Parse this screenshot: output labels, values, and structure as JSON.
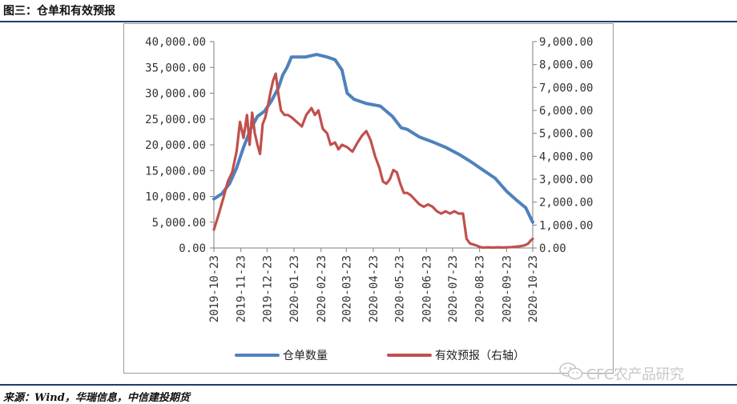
{
  "header": {
    "title": "图三：仓单和有效预报"
  },
  "footer": {
    "source": "来源：Wind，华瑞信息，中信建投期货",
    "watermark": "CFC农产品研究"
  },
  "colors": {
    "series1": "#4f81bd",
    "series2": "#c0504d",
    "rule": "#1f3b73"
  },
  "chart_data": {
    "type": "line",
    "title": "",
    "left_axis": {
      "ylim": [
        0,
        40000
      ],
      "ticks": [
        "0.00",
        "5,000.00",
        "10,000.00",
        "15,000.00",
        "20,000.00",
        "25,000.00",
        "30,000.00",
        "35,000.00",
        "40,000.00"
      ]
    },
    "right_axis": {
      "ylim": [
        0,
        9000
      ],
      "ticks": [
        "0.00",
        "1,000.00",
        "2,000.00",
        "3,000.00",
        "4,000.00",
        "5,000.00",
        "6,000.00",
        "7,000.00",
        "8,000.00",
        "9,000.00"
      ]
    },
    "x_ticks": [
      "2019-10-23",
      "2019-11-23",
      "2019-12-23",
      "2020-01-23",
      "2020-02-23",
      "2020-03-23",
      "2020-04-23",
      "2020-05-23",
      "2020-06-23",
      "2020-07-23",
      "2020-08-23",
      "2020-09-23",
      "2020-10-23"
    ],
    "legend_position": "bottom",
    "series": [
      {
        "name": "仓单数量",
        "axis": "left",
        "x": [
          "2019-10-23",
          "2019-11-01",
          "2019-11-10",
          "2019-11-18",
          "2019-11-26",
          "2019-12-04",
          "2019-12-12",
          "2019-12-20",
          "2019-12-28",
          "2020-01-05",
          "2020-01-10",
          "2020-01-15",
          "2020-01-20",
          "2020-02-05",
          "2020-02-18",
          "2020-03-01",
          "2020-03-10",
          "2020-03-18",
          "2020-03-24",
          "2020-04-01",
          "2020-04-15",
          "2020-05-01",
          "2020-05-15",
          "2020-05-25",
          "2020-06-01",
          "2020-06-15",
          "2020-07-01",
          "2020-07-15",
          "2020-08-01",
          "2020-08-15",
          "2020-08-28",
          "2020-09-10",
          "2020-09-23",
          "2020-10-05",
          "2020-10-15",
          "2020-10-23"
        ],
        "y": [
          9500,
          10500,
          12500,
          15500,
          19500,
          23000,
          25500,
          26500,
          28500,
          31000,
          33500,
          35000,
          37000,
          37000,
          37500,
          37000,
          36500,
          34500,
          30000,
          28800,
          28000,
          27500,
          25500,
          23300,
          23000,
          21500,
          20500,
          19500,
          18000,
          16500,
          15000,
          13500,
          11000,
          9200,
          7800,
          5000
        ]
      },
      {
        "name": "有效预报（右轴）",
        "axis": "right",
        "x": [
          "2019-10-23",
          "2019-10-28",
          "2019-11-03",
          "2019-11-08",
          "2019-11-13",
          "2019-11-18",
          "2019-11-22",
          "2019-11-26",
          "2019-11-30",
          "2019-12-03",
          "2019-12-06",
          "2019-12-09",
          "2019-12-12",
          "2019-12-15",
          "2019-12-18",
          "2019-12-21",
          "2019-12-24",
          "2019-12-27",
          "2019-12-30",
          "2020-01-02",
          "2020-01-05",
          "2020-01-08",
          "2020-01-12",
          "2020-01-16",
          "2020-01-20",
          "2020-01-26",
          "2020-02-01",
          "2020-02-06",
          "2020-02-12",
          "2020-02-16",
          "2020-02-20",
          "2020-02-25",
          "2020-03-01",
          "2020-03-05",
          "2020-03-10",
          "2020-03-14",
          "2020-03-18",
          "2020-03-24",
          "2020-03-30",
          "2020-04-05",
          "2020-04-10",
          "2020-04-15",
          "2020-04-20",
          "2020-04-25",
          "2020-04-30",
          "2020-05-04",
          "2020-05-08",
          "2020-05-12",
          "2020-05-16",
          "2020-05-20",
          "2020-05-24",
          "2020-05-28",
          "2020-06-01",
          "2020-06-05",
          "2020-06-10",
          "2020-06-15",
          "2020-06-20",
          "2020-06-25",
          "2020-06-30",
          "2020-07-05",
          "2020-07-10",
          "2020-07-15",
          "2020-07-20",
          "2020-07-25",
          "2020-07-30",
          "2020-08-04",
          "2020-08-08",
          "2020-08-12",
          "2020-08-16",
          "2020-08-20",
          "2020-08-23",
          "2020-08-26",
          "2020-08-29",
          "2020-09-01",
          "2020-09-05",
          "2020-09-09",
          "2020-09-14",
          "2020-09-19",
          "2020-09-24",
          "2020-09-29",
          "2020-10-04",
          "2020-10-09",
          "2020-10-14",
          "2020-10-18",
          "2020-10-20",
          "2020-10-23"
        ],
        "y": [
          800,
          1400,
          2200,
          2900,
          3300,
          4200,
          5500,
          4800,
          5800,
          4500,
          5900,
          5000,
          4500,
          4100,
          5400,
          5700,
          6200,
          6800,
          7300,
          7600,
          6700,
          6000,
          5800,
          5800,
          5700,
          5500,
          5300,
          5800,
          6100,
          5800,
          6000,
          5200,
          5000,
          4500,
          4600,
          4300,
          4500,
          4400,
          4200,
          4600,
          4900,
          5100,
          4700,
          4000,
          3500,
          2900,
          2800,
          3000,
          3400,
          3300,
          2800,
          2400,
          2400,
          2300,
          2100,
          1900,
          1800,
          1900,
          1800,
          1600,
          1500,
          1600,
          1500,
          1600,
          1500,
          1500,
          400,
          200,
          150,
          100,
          50,
          20,
          20,
          30,
          20,
          20,
          30,
          20,
          30,
          40,
          60,
          80,
          120,
          200,
          300,
          400
        ]
      }
    ]
  }
}
